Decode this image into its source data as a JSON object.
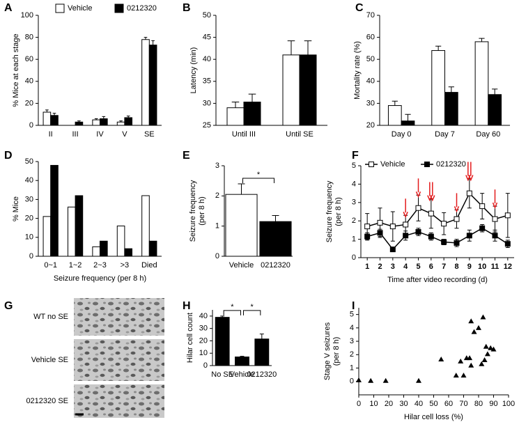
{
  "chart_data": [
    {
      "panel": "A",
      "type": "bar",
      "ylabel": [
        "% Mice at each stage"
      ],
      "categories": [
        "II",
        "III",
        "IV",
        "V",
        "SE"
      ],
      "series": [
        {
          "name": "Vehicle",
          "color": "#ffffff",
          "values": [
            12,
            0,
            5,
            3,
            78
          ],
          "errors": [
            2,
            0,
            1,
            1,
            2
          ]
        },
        {
          "name": "0212320",
          "color": "#000000",
          "values": [
            9,
            3,
            6,
            7,
            73
          ],
          "errors": [
            2,
            1,
            2,
            1.5,
            4
          ]
        }
      ],
      "ylim": [
        0,
        100
      ],
      "yticks": [
        0,
        20,
        40,
        60,
        80,
        100
      ],
      "legend": "top"
    },
    {
      "panel": "B",
      "type": "bar",
      "ylabel": [
        "Latency (min)"
      ],
      "categories": [
        "Until III",
        "Until SE"
      ],
      "series": [
        {
          "color": "#ffffff",
          "values": [
            29,
            41
          ],
          "errors": [
            1.3,
            3.2
          ]
        },
        {
          "color": "#000000",
          "values": [
            30.3,
            41
          ],
          "errors": [
            1.8,
            3.2
          ]
        }
      ],
      "ylim": [
        25,
        50
      ],
      "yticks": [
        25,
        30,
        35,
        40,
        45,
        50
      ]
    },
    {
      "panel": "C",
      "type": "bar",
      "ylabel": [
        "Mortality rate (%)"
      ],
      "categories": [
        "Day 0",
        "Day 7",
        "Day 60"
      ],
      "series": [
        {
          "color": "#ffffff",
          "values": [
            29,
            54,
            58
          ],
          "errors": [
            2,
            2,
            1.5
          ]
        },
        {
          "color": "#000000",
          "values": [
            22,
            35,
            34
          ],
          "errors": [
            3,
            2.5,
            2.5
          ]
        }
      ],
      "ylim": [
        20,
        70
      ],
      "yticks": [
        20,
        30,
        40,
        50,
        60,
        70
      ]
    },
    {
      "panel": "D",
      "type": "bar",
      "ylabel": [
        "% Mice"
      ],
      "xlabel": "Seizure frequency (per 8 h)",
      "categories": [
        "0~1",
        "1~2",
        "2~3",
        ">3",
        "Died"
      ],
      "series": [
        {
          "color": "#ffffff",
          "values": [
            21,
            26,
            5,
            16,
            32
          ]
        },
        {
          "color": "#000000",
          "values": [
            48,
            32,
            8,
            4,
            8
          ]
        }
      ],
      "ylim": [
        0,
        50
      ],
      "yticks": [
        0,
        10,
        20,
        30,
        40,
        50
      ]
    },
    {
      "panel": "E",
      "type": "bar",
      "ylabel": [
        "Seizure frequency",
        "(per 8 h)"
      ],
      "categories": [
        "Vehicle",
        "0212320"
      ],
      "values": [
        2.05,
        1.15
      ],
      "errors": [
        0.35,
        0.2
      ],
      "colors": [
        "#ffffff",
        "#000000"
      ],
      "ylim": [
        0,
        3
      ],
      "yticks": [
        0,
        1,
        2,
        3
      ],
      "annotations": [
        {
          "text": "*",
          "between": [
            0,
            1
          ]
        }
      ]
    },
    {
      "panel": "F",
      "type": "line",
      "ylabel": [
        "Seizure frequency",
        "(per 8 h)"
      ],
      "xlabel": "Time after video recording (d)",
      "x": [
        1,
        2,
        3,
        4,
        5,
        6,
        7,
        8,
        9,
        10,
        11,
        12
      ],
      "series": [
        {
          "name": "Vehicle",
          "color": "#000000",
          "marker_fill": "#ffffff",
          "values": [
            1.7,
            1.9,
            1.7,
            1.8,
            2.7,
            2.4,
            1.85,
            2.1,
            3.5,
            2.8,
            2.1,
            2.3
          ],
          "errors": [
            0.7,
            0.8,
            0.8,
            0.5,
            0.7,
            0.8,
            0.6,
            0.5,
            0.8,
            0.7,
            0.7,
            1.2
          ]
        },
        {
          "name": "0212320",
          "color": "#000000",
          "marker_fill": "#000000",
          "values": [
            1.15,
            1.35,
            0.45,
            1.2,
            1.4,
            1.15,
            0.85,
            0.8,
            1.2,
            1.6,
            1.2,
            0.75
          ],
          "errors": [
            0.2,
            0.2,
            0.1,
            0.25,
            0.2,
            0.2,
            0.15,
            0.2,
            0.3,
            0.2,
            0.3,
            0.2
          ]
        }
      ],
      "arrows": {
        "color": "#e41a1c",
        "x": [
          4,
          5,
          6,
          6,
          8,
          9,
          9,
          11
        ]
      },
      "xlim": [
        0.5,
        12.5
      ],
      "xticks": [
        1,
        2,
        3,
        4,
        5,
        6,
        7,
        8,
        9,
        10,
        11,
        12
      ],
      "ylim": [
        0,
        5
      ],
      "yticks": [
        0,
        1,
        2,
        3,
        4,
        5
      ],
      "legend": "top-left"
    },
    {
      "panel": "H",
      "type": "bar",
      "ylabel": [
        "Hilar cell count"
      ],
      "categories": [
        "No SE",
        "Vehicle",
        "0212320"
      ],
      "values": [
        39,
        7,
        21.5
      ],
      "errors": [
        1,
        0.5,
        4
      ],
      "color": "#000000",
      "ylim": [
        0,
        45
      ],
      "yticks": [
        0,
        10,
        20,
        30,
        40
      ],
      "annotations": [
        {
          "text": "*",
          "between": [
            0,
            1
          ]
        },
        {
          "text": "*",
          "between": [
            1,
            2
          ]
        }
      ]
    },
    {
      "panel": "I",
      "type": "scatter",
      "ylabel": [
        "Stage V seizures",
        "(per 8 h)"
      ],
      "xlabel": "Hilar cell loss (%)",
      "x": [
        0,
        8,
        18,
        40,
        55,
        65,
        68,
        70,
        72,
        74,
        75,
        75,
        77,
        80,
        82,
        83,
        84,
        85,
        86,
        88,
        90
      ],
      "values": [
        0.1,
        0.05,
        0.05,
        0.05,
        1.65,
        0.45,
        1.5,
        0.45,
        1.75,
        1.75,
        4.5,
        1.2,
        3.7,
        4,
        1.3,
        4.8,
        1.6,
        2.6,
        2.05,
        2.5,
        2.4
      ],
      "color": "#000000",
      "xlim": [
        0,
        100
      ],
      "xticks": [
        0,
        10,
        20,
        30,
        40,
        50,
        60,
        70,
        80,
        90,
        100
      ],
      "ylim": [
        -1,
        5.5
      ],
      "yticks": [
        0,
        1,
        2,
        3,
        4,
        5
      ]
    }
  ],
  "image_panel": {
    "panel": "G",
    "labels": [
      "WT no SE",
      "Vehicle SE",
      "0212320 SE"
    ]
  }
}
